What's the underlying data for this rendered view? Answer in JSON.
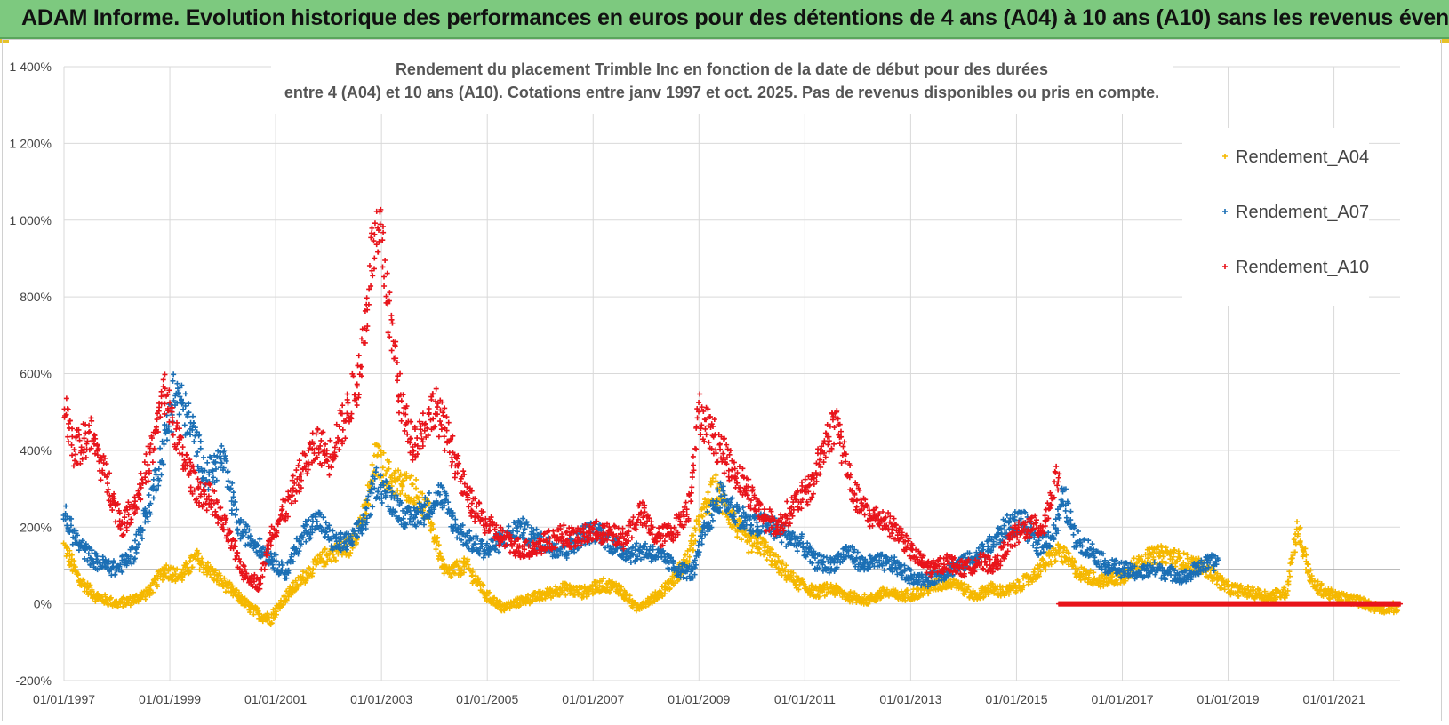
{
  "banner": {
    "title": "ADAM Informe. Evolution historique des performances en euros pour des détentions de 4 ans (A04) à 10 ans (A10) sans les revenus éventuels"
  },
  "colors": {
    "banner_bg": "#7dc97f",
    "A04": "#f5b800",
    "A07": "#1b6fb5",
    "A10": "#e8141b",
    "grid": "#d9d9d9"
  },
  "chart_data": {
    "type": "scatter",
    "title_line1": "Rendement du placement Trimble Inc en fonction de la date de début pour des durées",
    "title_line2": "entre 4 (A04) et 10 ans (A10). Cotations entre janv 1997 et oct. 2025. Pas de revenus disponibles ou pris en compte.",
    "xlabel": "",
    "ylabel": "",
    "xlim": [
      1997.0,
      2022.25
    ],
    "ylim": [
      -200,
      1400
    ],
    "y_ticks": [
      "1 400%",
      "1 200%",
      "1 000%",
      "800%",
      "600%",
      "400%",
      "200%",
      "0%",
      "-200%"
    ],
    "x_ticks": [
      "01/01/1997",
      "01/01/1999",
      "01/01/2001",
      "01/01/2003",
      "01/01/2005",
      "01/01/2007",
      "01/01/2009",
      "01/01/2011",
      "01/01/2013",
      "01/01/2015",
      "01/01/2017",
      "01/01/2019",
      "01/01/2021"
    ],
    "legend": [
      "Rendement_A04",
      "Rendement_A07",
      "Rendement_A10"
    ],
    "legend_position": "top-right",
    "series": [
      {
        "name": "Rendement_A04",
        "x": [
          1997.0,
          1997.3,
          1997.6,
          1998.0,
          1998.3,
          1998.6,
          1998.9,
          1999.2,
          1999.5,
          1999.8,
          2000.2,
          2000.6,
          2000.9,
          2001.2,
          2001.6,
          2002.0,
          2002.4,
          2002.7,
          2002.9,
          2003.2,
          2003.6,
          2003.9,
          2004.2,
          2004.6,
          2005.0,
          2005.3,
          2005.7,
          2006.0,
          2006.4,
          2006.8,
          2007.2,
          2007.5,
          2007.8,
          2008.2,
          2008.5,
          2008.8,
          2009.0,
          2009.3,
          2009.6,
          2009.9,
          2010.2,
          2010.5,
          2010.8,
          2011.2,
          2011.5,
          2011.8,
          2012.2,
          2012.5,
          2012.8,
          2013.2,
          2013.5,
          2013.8,
          2014.2,
          2014.5,
          2014.8,
          2015.2,
          2015.5,
          2015.8,
          2016.2,
          2016.6,
          2017.0,
          2017.4,
          2017.8,
          2018.2,
          2018.6,
          2019.0,
          2019.4,
          2019.8,
          2020.1,
          2020.3,
          2020.6,
          2021.0,
          2021.4,
          2021.8,
          2022.2
        ],
        "y": [
          150,
          60,
          20,
          0,
          10,
          30,
          90,
          70,
          120,
          80,
          30,
          -20,
          -40,
          20,
          80,
          130,
          150,
          240,
          380,
          320,
          300,
          230,
          80,
          100,
          20,
          -10,
          10,
          20,
          40,
          30,
          50,
          40,
          -10,
          20,
          60,
          120,
          210,
          300,
          230,
          160,
          150,
          100,
          60,
          30,
          40,
          20,
          10,
          30,
          20,
          30,
          50,
          60,
          20,
          40,
          30,
          60,
          100,
          140,
          80,
          60,
          70,
          120,
          130,
          110,
          90,
          40,
          30,
          20,
          30,
          200,
          50,
          20,
          10,
          -10,
          -10
        ]
      },
      {
        "name": "Rendement_A07",
        "x": [
          1997.0,
          1997.3,
          1997.6,
          1998.0,
          1998.3,
          1998.6,
          1998.9,
          1999.1,
          1999.4,
          1999.7,
          2000.0,
          2000.3,
          2000.6,
          2000.9,
          2001.2,
          2001.5,
          2001.8,
          2002.1,
          2002.4,
          2002.7,
          2002.9,
          2003.2,
          2003.5,
          2003.8,
          2004.1,
          2004.4,
          2004.7,
          2005.0,
          2005.3,
          2005.6,
          2005.9,
          2006.2,
          2006.5,
          2006.8,
          2007.1,
          2007.4,
          2007.7,
          2008.0,
          2008.3,
          2008.6,
          2008.9,
          2009.1,
          2009.4,
          2009.7,
          2010.0,
          2010.3,
          2010.6,
          2010.9,
          2011.2,
          2011.5,
          2011.8,
          2012.1,
          2012.4,
          2012.7,
          2013.0,
          2013.3,
          2013.6,
          2013.9,
          2014.2,
          2014.5,
          2014.8,
          2015.1,
          2015.4,
          2015.7,
          2015.9,
          2016.1,
          2016.4,
          2016.7,
          2017.0,
          2017.3,
          2017.6,
          2017.9,
          2018.2,
          2018.5,
          2018.8
        ],
        "y": [
          230,
          150,
          110,
          90,
          130,
          250,
          420,
          560,
          460,
          330,
          380,
          200,
          160,
          120,
          80,
          180,
          220,
          160,
          160,
          220,
          320,
          270,
          220,
          240,
          290,
          200,
          160,
          140,
          170,
          200,
          170,
          150,
          140,
          180,
          190,
          150,
          130,
          140,
          120,
          90,
          80,
          190,
          280,
          240,
          200,
          210,
          180,
          160,
          110,
          100,
          140,
          100,
          110,
          100,
          70,
          60,
          80,
          100,
          120,
          150,
          200,
          220,
          150,
          180,
          280,
          170,
          140,
          100,
          90,
          80,
          90,
          80,
          70,
          100,
          110
        ]
      },
      {
        "name": "Rendement_A10",
        "x": [
          1997.0,
          1997.2,
          1997.5,
          1997.8,
          1998.1,
          1998.4,
          1998.7,
          1998.9,
          1999.2,
          1999.5,
          1999.8,
          2000.1,
          2000.4,
          2000.7,
          2000.9,
          2001.2,
          2001.5,
          2001.8,
          2002.0,
          2002.3,
          2002.6,
          2002.8,
          2003.0,
          2003.2,
          2003.4,
          2003.6,
          2003.8,
          2004.0,
          2004.3,
          2004.6,
          2004.9,
          2005.2,
          2005.5,
          2005.8,
          2006.1,
          2006.4,
          2006.7,
          2007.0,
          2007.3,
          2007.6,
          2007.9,
          2008.2,
          2008.5,
          2008.8,
          2009.0,
          2009.3,
          2009.6,
          2009.9,
          2010.2,
          2010.5,
          2010.8,
          2011.1,
          2011.4,
          2011.6,
          2011.9,
          2012.2,
          2012.5,
          2012.8,
          2013.1,
          2013.4,
          2013.7,
          2014.0,
          2014.3,
          2014.6,
          2014.9,
          2015.2,
          2015.5,
          2015.8
        ],
        "y": [
          520,
          400,
          440,
          330,
          200,
          280,
          420,
          560,
          400,
          300,
          270,
          180,
          80,
          50,
          180,
          250,
          350,
          420,
          380,
          480,
          600,
          900,
          950,
          700,
          500,
          420,
          460,
          520,
          420,
          280,
          220,
          180,
          150,
          140,
          160,
          180,
          170,
          190,
          180,
          170,
          240,
          170,
          190,
          250,
          500,
          430,
          360,
          300,
          230,
          200,
          260,
          300,
          420,
          480,
          290,
          230,
          220,
          180,
          120,
          90,
          110,
          90,
          110,
          100,
          170,
          200,
          200,
          350
        ]
      }
    ],
    "flat_segment": {
      "series": "Rendement_A10",
      "x_start": 2015.8,
      "x_end": 2022.25,
      "y": 0
    }
  }
}
